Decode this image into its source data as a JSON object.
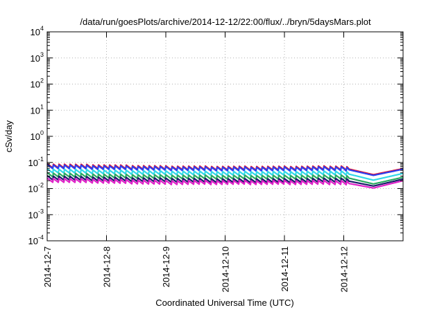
{
  "chart_data": {
    "type": "line",
    "title": "/data/run/goesPlots/archive/2014-12-12/22:00/flux/../bryn/5daysMars.plot",
    "xlabel": "Coordinated Universal Time (UTC)",
    "ylabel": "cSv/day",
    "y_scale": "log",
    "ylim": [
      0.0001,
      10000
    ],
    "xlim": [
      "2014-12-07",
      "2014-12-13"
    ],
    "x_tick_labels": [
      "2014-12-7",
      "2014-12-8",
      "2014-12-9",
      "2014-12-10",
      "2014-12-11",
      "2014-12-12"
    ],
    "y_tick_labels": [
      {
        "base": "10",
        "exp": "-4"
      },
      {
        "base": "10",
        "exp": "-3"
      },
      {
        "base": "10",
        "exp": "-2"
      },
      {
        "base": "10",
        "exp": "-1"
      },
      {
        "base": "10",
        "exp": "0"
      },
      {
        "base": "10",
        "exp": "1"
      },
      {
        "base": "10",
        "exp": "2"
      },
      {
        "base": "10",
        "exp": "3"
      },
      {
        "base": "10",
        "exp": "4"
      }
    ],
    "grid": true,
    "legend": "none",
    "series": [
      {
        "color": "#e8102a",
        "x": [
          "2014-12-07",
          "2014-12-08",
          "2014-12-09",
          "2014-12-10",
          "2014-12-11",
          "2014-12-12",
          "2014-12-12 12:00",
          "2014-12-13"
        ],
        "values": [
          0.075,
          0.068,
          0.062,
          0.06,
          0.06,
          0.062,
          0.034,
          0.058
        ]
      },
      {
        "color": "#2a3ff0",
        "x": [
          "2014-12-07",
          "2014-12-08",
          "2014-12-09",
          "2014-12-10",
          "2014-12-11",
          "2014-12-12",
          "2014-12-12 12:00",
          "2014-12-13"
        ],
        "values": [
          0.07,
          0.063,
          0.058,
          0.056,
          0.056,
          0.058,
          0.032,
          0.055
        ]
      },
      {
        "color": "#30d8e8",
        "x": [
          "2014-12-07",
          "2014-12-08",
          "2014-12-09",
          "2014-12-10",
          "2014-12-11",
          "2014-12-12",
          "2014-12-12 12:00",
          "2014-12-13"
        ],
        "values": [
          0.048,
          0.043,
          0.04,
          0.038,
          0.038,
          0.04,
          0.021,
          0.038
        ]
      },
      {
        "color": "#2aa860",
        "x": [
          "2014-12-07",
          "2014-12-08",
          "2014-12-09",
          "2014-12-10",
          "2014-12-11",
          "2014-12-12",
          "2014-12-12 12:00",
          "2014-12-13"
        ],
        "values": [
          0.034,
          0.03,
          0.028,
          0.027,
          0.027,
          0.028,
          0.015,
          0.027
        ]
      },
      {
        "color": "#1a1a6a",
        "x": [
          "2014-12-07",
          "2014-12-08",
          "2014-12-09",
          "2014-12-10",
          "2014-12-11",
          "2014-12-12",
          "2014-12-12 12:00",
          "2014-12-13"
        ],
        "values": [
          0.026,
          0.023,
          0.021,
          0.02,
          0.02,
          0.021,
          0.0125,
          0.023
        ]
      },
      {
        "color": "#e020c8",
        "x": [
          "2014-12-07",
          "2014-12-08",
          "2014-12-09",
          "2014-12-10",
          "2014-12-11",
          "2014-12-12",
          "2014-12-12 12:00",
          "2014-12-13"
        ],
        "values": [
          0.021,
          0.019,
          0.017,
          0.017,
          0.017,
          0.017,
          0.0105,
          0.02
        ]
      }
    ]
  }
}
